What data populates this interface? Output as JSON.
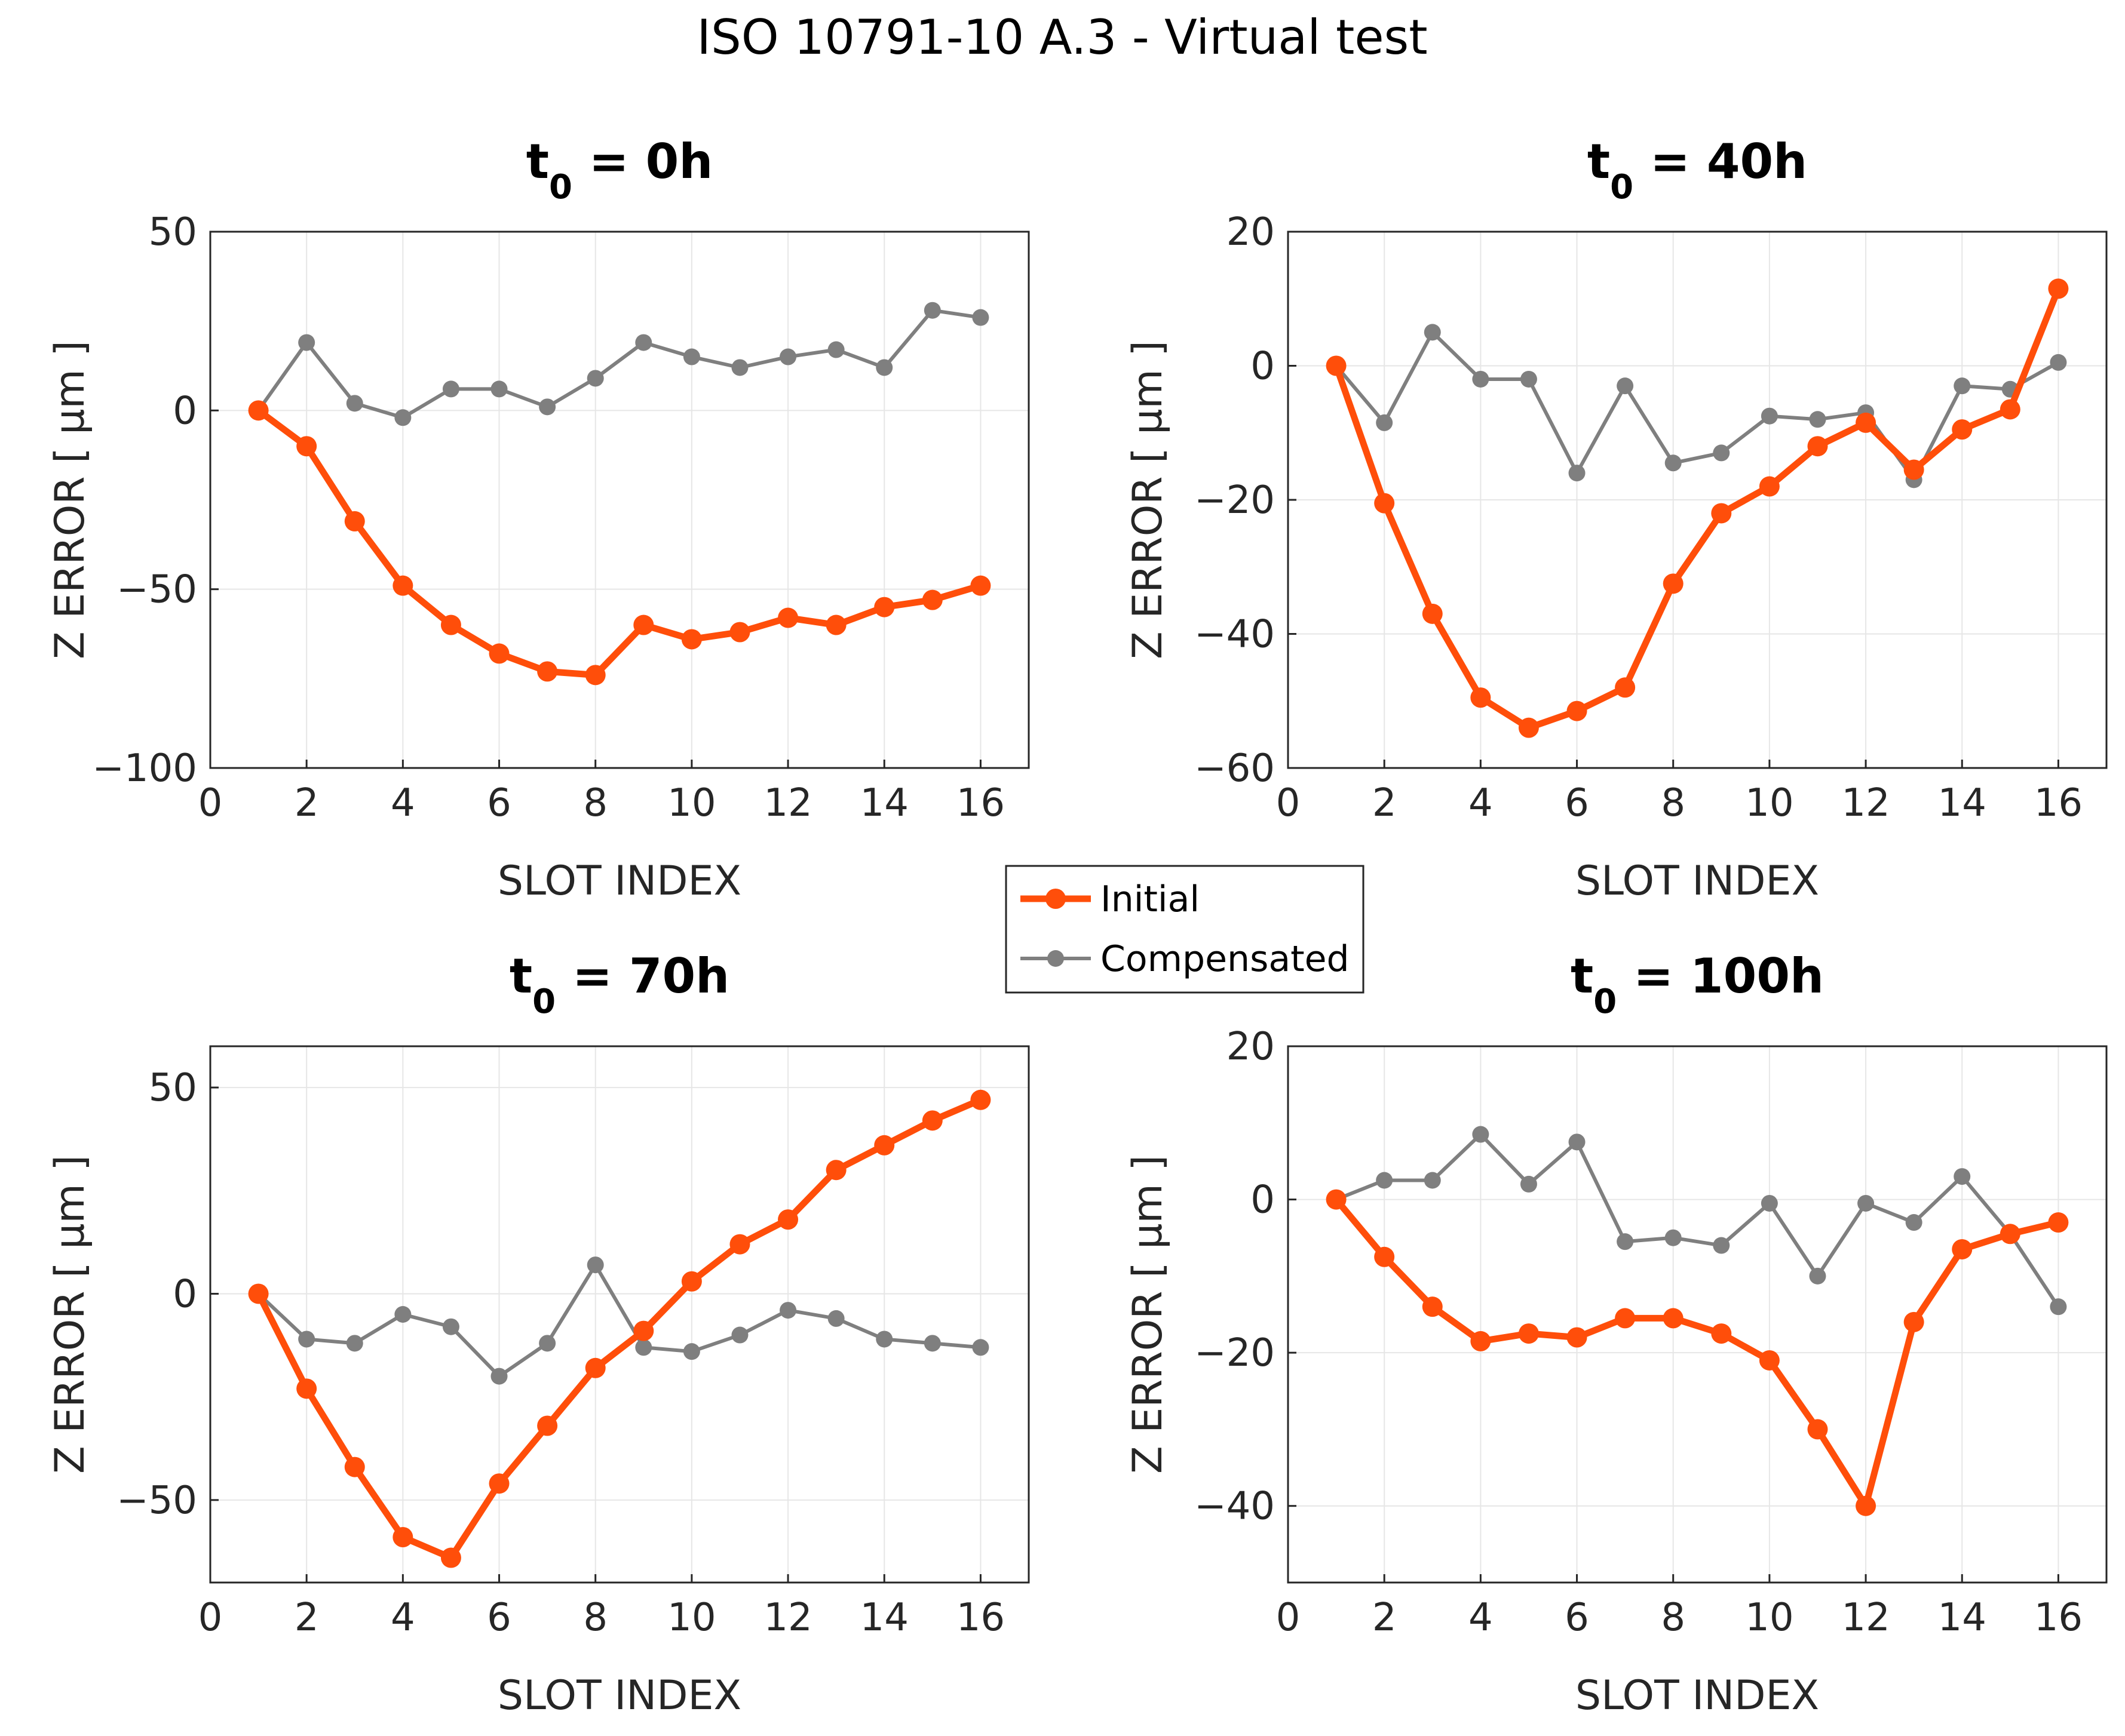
{
  "figure": {
    "title": "ISO 10791-10 A.3 - Virtual test"
  },
  "legend": {
    "entries": [
      {
        "label": "Initial",
        "color": "#ff4e0a"
      },
      {
        "label": "Compensated",
        "color": "#7f7f7f"
      }
    ]
  },
  "colors": {
    "initial": "#ff4e0a",
    "compensated": "#7f7f7f",
    "grid": "#e6e6e6",
    "axis": "#262626"
  },
  "chart_data": [
    {
      "type": "line",
      "title_main": "t",
      "title_sub": "0",
      "title_rest": " = 0h",
      "xlabel": "SLOT INDEX",
      "ylabel": "Z ERROR [ µm ]",
      "xlim": [
        0,
        17
      ],
      "ylim": [
        -100,
        50
      ],
      "xticks": [
        0,
        2,
        4,
        6,
        8,
        10,
        12,
        14,
        16
      ],
      "yticks": [
        -100,
        -50,
        0,
        50
      ],
      "ytick_labels": [
        "−100",
        "−50",
        "0",
        "50"
      ],
      "grid": true,
      "x": [
        1,
        2,
        3,
        4,
        5,
        6,
        7,
        8,
        9,
        10,
        11,
        12,
        13,
        14,
        15,
        16
      ],
      "series": [
        {
          "name": "Initial",
          "values": [
            0,
            -10,
            -31,
            -49,
            -60,
            -68,
            -73,
            -74,
            -60,
            -64,
            -62,
            -58,
            -60,
            -55,
            -53,
            -49
          ]
        },
        {
          "name": "Compensated",
          "values": [
            0,
            19,
            2,
            -2,
            6,
            6,
            1,
            9,
            19,
            15,
            12,
            15,
            17,
            12,
            28,
            26
          ]
        }
      ]
    },
    {
      "type": "line",
      "title_main": "t",
      "title_sub": "0",
      "title_rest": " = 40h",
      "xlabel": "SLOT INDEX",
      "ylabel": "Z ERROR [ µm ]",
      "xlim": [
        0,
        17
      ],
      "ylim": [
        -60,
        20
      ],
      "xticks": [
        0,
        2,
        4,
        6,
        8,
        10,
        12,
        14,
        16
      ],
      "yticks": [
        -60,
        -40,
        -20,
        0,
        20
      ],
      "ytick_labels": [
        "−60",
        "−40",
        "−20",
        "0",
        "20"
      ],
      "grid": true,
      "x": [
        1,
        2,
        3,
        4,
        5,
        6,
        7,
        8,
        9,
        10,
        11,
        12,
        13,
        14,
        15,
        16
      ],
      "series": [
        {
          "name": "Initial",
          "values": [
            0,
            -20.5,
            -37,
            -49.5,
            -54,
            -51.5,
            -48,
            -32.5,
            -22,
            -18,
            -12,
            -8.5,
            -15.5,
            -9.5,
            -6.5,
            11.5
          ]
        },
        {
          "name": "Compensated",
          "values": [
            0,
            -8.5,
            5,
            -2,
            -2,
            -16,
            -3,
            -14.5,
            -13,
            -7.5,
            -8,
            -7,
            -17,
            -3,
            -3.5,
            0.5
          ]
        }
      ]
    },
    {
      "type": "line",
      "title_main": "t",
      "title_sub": "0",
      "title_rest": " = 70h",
      "xlabel": "SLOT INDEX",
      "ylabel": "Z ERROR [ µm ]",
      "xlim": [
        0,
        17
      ],
      "ylim": [
        -70,
        60
      ],
      "xticks": [
        0,
        2,
        4,
        6,
        8,
        10,
        12,
        14,
        16
      ],
      "yticks": [
        -50,
        0,
        50
      ],
      "ytick_labels": [
        "−50",
        "0",
        "50"
      ],
      "grid": true,
      "x": [
        1,
        2,
        3,
        4,
        5,
        6,
        7,
        8,
        9,
        10,
        11,
        12,
        13,
        14,
        15,
        16
      ],
      "series": [
        {
          "name": "Initial",
          "values": [
            0,
            -23,
            -42,
            -59,
            -64,
            -46,
            -32,
            -18,
            -9,
            3,
            12,
            18,
            30,
            36,
            42,
            47
          ]
        },
        {
          "name": "Compensated",
          "values": [
            0,
            -11,
            -12,
            -5,
            -8,
            -20,
            -12,
            7,
            -13,
            -14,
            -10,
            -4,
            -6,
            -11,
            -12,
            -13
          ]
        }
      ]
    },
    {
      "type": "line",
      "title_main": "t",
      "title_sub": "0",
      "title_rest": " = 100h",
      "xlabel": "SLOT INDEX",
      "ylabel": "Z ERROR [ µm ]",
      "xlim": [
        0,
        17
      ],
      "ylim": [
        -50,
        20
      ],
      "xticks": [
        0,
        2,
        4,
        6,
        8,
        10,
        12,
        14,
        16
      ],
      "yticks": [
        -40,
        -20,
        0,
        20
      ],
      "ytick_labels": [
        "−40",
        "−20",
        "0",
        "20"
      ],
      "grid": true,
      "x": [
        1,
        2,
        3,
        4,
        5,
        6,
        7,
        8,
        9,
        10,
        11,
        12,
        13,
        14,
        15,
        16
      ],
      "series": [
        {
          "name": "Initial",
          "values": [
            0,
            -7.5,
            -14,
            -18.5,
            -17.5,
            -18,
            -15.5,
            -15.5,
            -17.5,
            -21,
            -30,
            -40,
            -16,
            -6.5,
            -4.5,
            -3
          ]
        },
        {
          "name": "Compensated",
          "values": [
            0,
            2.5,
            2.5,
            8.5,
            2,
            7.5,
            -5.5,
            -5,
            -6,
            -0.5,
            -10,
            -0.5,
            -3,
            3,
            -4.5,
            -14
          ]
        }
      ]
    }
  ]
}
